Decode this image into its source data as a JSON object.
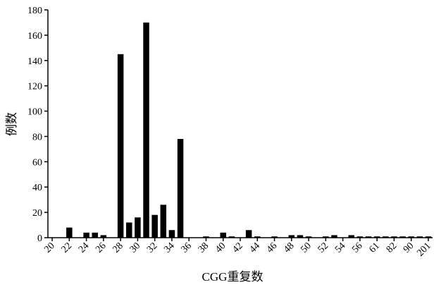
{
  "chart_data": {
    "type": "bar",
    "x_label": "CGG重复数",
    "y_label": "例数",
    "categories": [
      "20",
      null,
      "22",
      null,
      "24",
      null,
      "26",
      null,
      "28",
      null,
      "30",
      null,
      "32",
      null,
      "34",
      null,
      "36",
      null,
      "38",
      null,
      "40",
      null,
      "42",
      null,
      "44",
      null,
      "46",
      null,
      "48",
      null,
      "50",
      null,
      "52",
      null,
      "54",
      null,
      "56",
      null,
      "61",
      null,
      "82",
      null,
      "90",
      null,
      "201"
    ],
    "values": [
      0,
      0,
      8,
      0,
      4,
      4,
      2,
      0,
      145,
      12,
      16,
      170,
      18,
      26,
      6,
      78,
      0,
      0,
      1,
      0,
      4,
      1,
      0,
      6,
      1,
      0,
      1,
      0,
      2,
      2,
      1,
      0,
      1,
      2,
      0,
      2,
      1,
      1,
      1,
      1,
      1,
      1,
      1,
      1,
      1
    ],
    "color": "#000000",
    "ylim": [
      0,
      180
    ],
    "yticks": [
      0,
      20,
      40,
      60,
      80,
      100,
      120,
      140,
      160,
      180
    ]
  }
}
